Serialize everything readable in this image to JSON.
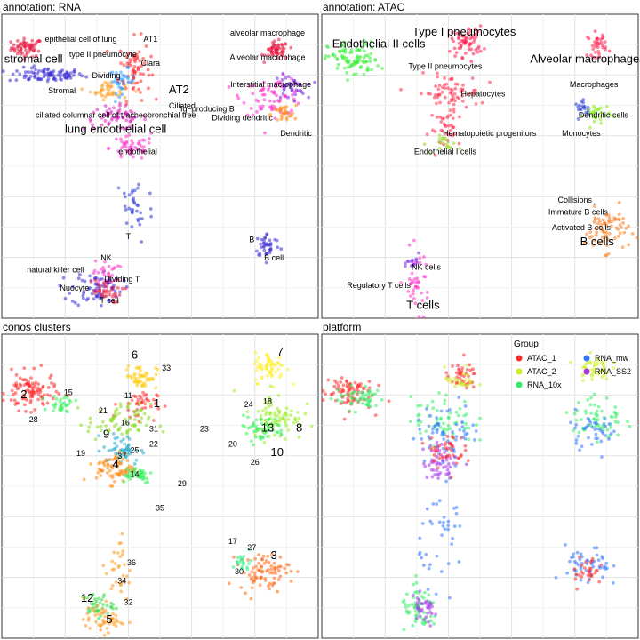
{
  "chart_data": [
    {
      "type": "scatter",
      "title": "annotation: RNA",
      "xlim": [
        0,
        10
      ],
      "ylim": [
        0,
        10
      ],
      "grid": true,
      "clusters": [
        {
          "cx": 0.8,
          "cy": 8.9,
          "sx": 0.25,
          "sy": 0.15,
          "n": 60,
          "color": "#e8143c"
        },
        {
          "cx": 1.4,
          "cy": 8.0,
          "sx": 0.6,
          "sy": 0.12,
          "n": 90,
          "color": "#3a2bd6"
        },
        {
          "cx": 4.2,
          "cy": 8.2,
          "sx": 0.25,
          "sy": 0.5,
          "n": 70,
          "color": "#ff2a2a"
        },
        {
          "cx": 3.4,
          "cy": 7.5,
          "sx": 0.3,
          "sy": 0.15,
          "n": 40,
          "color": "#ff9a1a"
        },
        {
          "cx": 3.8,
          "cy": 7.8,
          "sx": 0.2,
          "sy": 0.2,
          "n": 35,
          "color": "#3399ff"
        },
        {
          "cx": 3.6,
          "cy": 6.6,
          "sx": 0.5,
          "sy": 0.2,
          "n": 60,
          "color": "#e020c0"
        },
        {
          "cx": 4.1,
          "cy": 5.6,
          "sx": 0.35,
          "sy": 0.2,
          "n": 50,
          "color": "#ff33cc"
        },
        {
          "cx": 8.7,
          "cy": 8.8,
          "sx": 0.18,
          "sy": 0.15,
          "n": 55,
          "color": "#e8143c"
        },
        {
          "cx": 8.6,
          "cy": 7.3,
          "sx": 0.5,
          "sy": 0.3,
          "n": 70,
          "color": "#ff2ad0"
        },
        {
          "cx": 9.1,
          "cy": 7.6,
          "sx": 0.25,
          "sy": 0.2,
          "n": 40,
          "color": "#7a2be0"
        },
        {
          "cx": 8.9,
          "cy": 6.7,
          "sx": 0.2,
          "sy": 0.15,
          "n": 30,
          "color": "#ff8a1a"
        },
        {
          "cx": 4.2,
          "cy": 3.6,
          "sx": 0.3,
          "sy": 0.6,
          "n": 35,
          "color": "#2a3ad6"
        },
        {
          "cx": 8.4,
          "cy": 2.4,
          "sx": 0.2,
          "sy": 0.2,
          "n": 40,
          "color": "#3a2bd6"
        },
        {
          "cx": 3.0,
          "cy": 1.0,
          "sx": 0.4,
          "sy": 0.3,
          "n": 70,
          "color": "#3a2bd6"
        },
        {
          "cx": 3.2,
          "cy": 0.9,
          "sx": 0.3,
          "sy": 0.2,
          "n": 40,
          "color": "#e8143c"
        },
        {
          "cx": 3.3,
          "cy": 1.5,
          "sx": 0.2,
          "sy": 0.2,
          "n": 25,
          "color": "#ff33cc"
        }
      ],
      "labels": [
        {
          "text": "epithelial cell of lung",
          "x": 2.5,
          "y": 9.1,
          "size": "small"
        },
        {
          "text": "AT1",
          "x": 4.7,
          "y": 9.1,
          "size": "small"
        },
        {
          "text": "type II pneumocyte",
          "x": 3.2,
          "y": 8.6,
          "size": "small"
        },
        {
          "text": "stromal cell",
          "x": 1.0,
          "y": 8.4,
          "size": "big"
        },
        {
          "text": "Clara",
          "x": 4.7,
          "y": 8.3,
          "size": "small"
        },
        {
          "text": "Dividing",
          "x": 3.3,
          "y": 7.9,
          "size": "small"
        },
        {
          "text": "Stromal",
          "x": 1.9,
          "y": 7.4,
          "size": "small"
        },
        {
          "text": "AT2",
          "x": 5.6,
          "y": 7.4,
          "size": "big"
        },
        {
          "text": "Ciliated",
          "x": 5.7,
          "y": 6.9,
          "size": "small"
        },
        {
          "text": "Ig−producing B",
          "x": 6.5,
          "y": 6.8,
          "size": "small"
        },
        {
          "text": "ciliated columnar cell of tracheobronchial tree",
          "x": 3.6,
          "y": 6.6,
          "size": "small"
        },
        {
          "text": "lung endothelial cell",
          "x": 3.6,
          "y": 6.1,
          "size": "big"
        },
        {
          "text": "endothelial",
          "x": 4.3,
          "y": 5.4,
          "size": "small"
        },
        {
          "text": "alveolar macrophage",
          "x": 8.4,
          "y": 9.3,
          "size": "small"
        },
        {
          "text": "Alveolar macrophage",
          "x": 8.4,
          "y": 8.5,
          "size": "small"
        },
        {
          "text": "Interstitial macrophage",
          "x": 8.5,
          "y": 7.6,
          "size": "small"
        },
        {
          "text": "Dividing dendritic",
          "x": 7.6,
          "y": 6.5,
          "size": "small"
        },
        {
          "text": "Dendritic",
          "x": 9.3,
          "y": 6.0,
          "size": "small"
        },
        {
          "text": "T",
          "x": 4.0,
          "y": 2.6,
          "size": "small"
        },
        {
          "text": "B",
          "x": 7.9,
          "y": 2.5,
          "size": "small"
        },
        {
          "text": "B cell",
          "x": 8.6,
          "y": 1.9,
          "size": "small"
        },
        {
          "text": "NK",
          "x": 3.3,
          "y": 1.9,
          "size": "small"
        },
        {
          "text": "natural killer cell",
          "x": 1.7,
          "y": 1.5,
          "size": "small"
        },
        {
          "text": "Dividing T",
          "x": 3.8,
          "y": 1.2,
          "size": "small"
        },
        {
          "text": "Nuocyte",
          "x": 2.3,
          "y": 0.9,
          "size": "small"
        },
        {
          "text": "T cell",
          "x": 3.4,
          "y": 0.5,
          "size": "small"
        }
      ]
    },
    {
      "type": "scatter",
      "title": "annotation: ATAC",
      "xlim": [
        0,
        10
      ],
      "ylim": [
        0,
        10
      ],
      "grid": true,
      "clusters": [
        {
          "cx": 1.0,
          "cy": 8.5,
          "sx": 0.4,
          "sy": 0.3,
          "n": 90,
          "color": "#33ee33"
        },
        {
          "cx": 4.6,
          "cy": 9.1,
          "sx": 0.25,
          "sy": 0.25,
          "n": 60,
          "color": "#ff1a4a"
        },
        {
          "cx": 4.0,
          "cy": 7.4,
          "sx": 0.5,
          "sy": 0.3,
          "n": 70,
          "color": "#ff2a4a"
        },
        {
          "cx": 4.0,
          "cy": 6.2,
          "sx": 0.3,
          "sy": 0.3,
          "n": 30,
          "color": "#ff2a4a"
        },
        {
          "cx": 4.0,
          "cy": 5.7,
          "sx": 0.2,
          "sy": 0.15,
          "n": 20,
          "color": "#9ad62a"
        },
        {
          "cx": 8.7,
          "cy": 9.0,
          "sx": 0.15,
          "sy": 0.2,
          "n": 35,
          "color": "#ff1a4a"
        },
        {
          "cx": 8.3,
          "cy": 6.9,
          "sx": 0.15,
          "sy": 0.12,
          "n": 20,
          "color": "#2a3ad6"
        },
        {
          "cx": 8.7,
          "cy": 6.7,
          "sx": 0.2,
          "sy": 0.2,
          "n": 30,
          "color": "#88ee22"
        },
        {
          "cx": 9.0,
          "cy": 2.9,
          "sx": 0.35,
          "sy": 0.35,
          "n": 70,
          "color": "#ff7a1a"
        },
        {
          "cx": 3.0,
          "cy": 1.2,
          "sx": 0.2,
          "sy": 0.5,
          "n": 40,
          "color": "#ff33cc"
        },
        {
          "cx": 2.9,
          "cy": 1.8,
          "sx": 0.1,
          "sy": 0.15,
          "n": 15,
          "color": "#7a2be0"
        }
      ],
      "labels": [
        {
          "text": "Endothelial II cells",
          "x": 1.8,
          "y": 8.9,
          "size": "big"
        },
        {
          "text": "Type I pneumocytes",
          "x": 4.5,
          "y": 9.3,
          "size": "big"
        },
        {
          "text": "Alveolar macrophages",
          "x": 8.4,
          "y": 8.4,
          "size": "big"
        },
        {
          "text": "Type II pneumocytes",
          "x": 3.9,
          "y": 8.2,
          "size": "small"
        },
        {
          "text": "Hepatocytes",
          "x": 5.1,
          "y": 7.3,
          "size": "small"
        },
        {
          "text": "Macrophages",
          "x": 8.6,
          "y": 7.6,
          "size": "small"
        },
        {
          "text": "Dendritic cells",
          "x": 8.9,
          "y": 6.6,
          "size": "small"
        },
        {
          "text": "Hematopoietic progenitors",
          "x": 5.3,
          "y": 6.0,
          "size": "small"
        },
        {
          "text": "Monocytes",
          "x": 8.2,
          "y": 6.0,
          "size": "small"
        },
        {
          "text": "Endothelial I cells",
          "x": 3.9,
          "y": 5.4,
          "size": "small"
        },
        {
          "text": "Collisions",
          "x": 8.0,
          "y": 3.8,
          "size": "small"
        },
        {
          "text": "Immature B cells",
          "x": 8.1,
          "y": 3.4,
          "size": "small"
        },
        {
          "text": "Activated B cells",
          "x": 8.2,
          "y": 2.9,
          "size": "small"
        },
        {
          "text": "B cells",
          "x": 8.7,
          "y": 2.4,
          "size": "big"
        },
        {
          "text": "NK cells",
          "x": 3.3,
          "y": 1.6,
          "size": "small"
        },
        {
          "text": "Regulatory T cells",
          "x": 1.8,
          "y": 1.0,
          "size": "small"
        },
        {
          "text": "T cells",
          "x": 3.2,
          "y": 0.3,
          "size": "big"
        }
      ]
    },
    {
      "type": "scatter",
      "title": "conos clusters",
      "xlim": [
        0,
        10
      ],
      "ylim": [
        0,
        10
      ],
      "grid": true,
      "clusters": [
        {
          "cx": 0.9,
          "cy": 8.1,
          "sx": 0.4,
          "sy": 0.3,
          "n": 100,
          "color": "#ff2a2a"
        },
        {
          "cx": 1.9,
          "cy": 7.7,
          "sx": 0.2,
          "sy": 0.15,
          "n": 30,
          "color": "#33ee55"
        },
        {
          "cx": 4.4,
          "cy": 8.6,
          "sx": 0.25,
          "sy": 0.2,
          "n": 50,
          "color": "#ffcc11"
        },
        {
          "cx": 4.3,
          "cy": 7.7,
          "sx": 0.3,
          "sy": 0.25,
          "n": 40,
          "color": "#ff2a2a"
        },
        {
          "cx": 3.7,
          "cy": 7.1,
          "sx": 0.5,
          "sy": 0.3,
          "n": 70,
          "color": "#88dd22"
        },
        {
          "cx": 3.8,
          "cy": 6.2,
          "sx": 0.3,
          "sy": 0.25,
          "n": 50,
          "color": "#22aacc"
        },
        {
          "cx": 3.6,
          "cy": 5.6,
          "sx": 0.3,
          "sy": 0.25,
          "n": 70,
          "color": "#ff8811"
        },
        {
          "cx": 4.2,
          "cy": 5.4,
          "sx": 0.3,
          "sy": 0.15,
          "n": 40,
          "color": "#33ee55"
        },
        {
          "cx": 8.5,
          "cy": 8.9,
          "sx": 0.25,
          "sy": 0.25,
          "n": 60,
          "color": "#ffee22"
        },
        {
          "cx": 8.7,
          "cy": 7.3,
          "sx": 0.4,
          "sy": 0.4,
          "n": 80,
          "color": "#99ee22"
        },
        {
          "cx": 8.2,
          "cy": 6.9,
          "sx": 0.4,
          "sy": 0.2,
          "n": 50,
          "color": "#33ee55"
        },
        {
          "cx": 8.3,
          "cy": 2.2,
          "sx": 0.4,
          "sy": 0.3,
          "n": 80,
          "color": "#ff6611"
        },
        {
          "cx": 7.6,
          "cy": 2.5,
          "sx": 0.15,
          "sy": 0.15,
          "n": 20,
          "color": "#33ee88"
        },
        {
          "cx": 3.7,
          "cy": 2.2,
          "sx": 0.2,
          "sy": 0.6,
          "n": 30,
          "color": "#ff9922"
        },
        {
          "cx": 3.0,
          "cy": 1.1,
          "sx": 0.25,
          "sy": 0.2,
          "n": 40,
          "color": "#33dd44"
        },
        {
          "cx": 3.2,
          "cy": 0.6,
          "sx": 0.3,
          "sy": 0.2,
          "n": 50,
          "color": "#ff9922"
        }
      ],
      "labels": [
        {
          "text": "6",
          "x": 4.2,
          "y": 9.2,
          "size": "big"
        },
        {
          "text": "33",
          "x": 5.2,
          "y": 8.8,
          "size": "small"
        },
        {
          "text": "7",
          "x": 8.8,
          "y": 9.3,
          "size": "big"
        },
        {
          "text": "2",
          "x": 0.7,
          "y": 7.9,
          "size": "big"
        },
        {
          "text": "15",
          "x": 2.1,
          "y": 8.0,
          "size": "small"
        },
        {
          "text": "11",
          "x": 4.0,
          "y": 7.9,
          "size": "small"
        },
        {
          "text": "1",
          "x": 4.9,
          "y": 7.6,
          "size": "big"
        },
        {
          "text": "24",
          "x": 7.8,
          "y": 7.6,
          "size": "small"
        },
        {
          "text": "18",
          "x": 8.4,
          "y": 7.7,
          "size": "small"
        },
        {
          "text": "28",
          "x": 1.0,
          "y": 7.1,
          "size": "small"
        },
        {
          "text": "21",
          "x": 3.2,
          "y": 7.4,
          "size": "small"
        },
        {
          "text": "16",
          "x": 3.9,
          "y": 7.0,
          "size": "small"
        },
        {
          "text": "31",
          "x": 4.8,
          "y": 6.8,
          "size": "small"
        },
        {
          "text": "23",
          "x": 6.4,
          "y": 6.8,
          "size": "small"
        },
        {
          "text": "13",
          "x": 8.4,
          "y": 6.8,
          "size": "big"
        },
        {
          "text": "8",
          "x": 9.4,
          "y": 6.8,
          "size": "big"
        },
        {
          "text": "9",
          "x": 3.3,
          "y": 6.6,
          "size": "big"
        },
        {
          "text": "22",
          "x": 4.8,
          "y": 6.3,
          "size": "small"
        },
        {
          "text": "20",
          "x": 7.3,
          "y": 6.3,
          "size": "small"
        },
        {
          "text": "25",
          "x": 4.2,
          "y": 6.1,
          "size": "small"
        },
        {
          "text": "19",
          "x": 2.5,
          "y": 6.0,
          "size": "small"
        },
        {
          "text": "37",
          "x": 3.8,
          "y": 5.9,
          "size": "small"
        },
        {
          "text": "10",
          "x": 8.7,
          "y": 6.0,
          "size": "big"
        },
        {
          "text": "26",
          "x": 8.0,
          "y": 5.7,
          "size": "small"
        },
        {
          "text": "4",
          "x": 3.6,
          "y": 5.6,
          "size": "big"
        },
        {
          "text": "14",
          "x": 4.2,
          "y": 5.3,
          "size": "small"
        },
        {
          "text": "29",
          "x": 5.7,
          "y": 5.0,
          "size": "small"
        },
        {
          "text": "35",
          "x": 5.0,
          "y": 4.2,
          "size": "small"
        },
        {
          "text": "17",
          "x": 7.3,
          "y": 3.1,
          "size": "small"
        },
        {
          "text": "27",
          "x": 7.9,
          "y": 2.9,
          "size": "small"
        },
        {
          "text": "3",
          "x": 8.6,
          "y": 2.6,
          "size": "big"
        },
        {
          "text": "36",
          "x": 4.1,
          "y": 2.4,
          "size": "small"
        },
        {
          "text": "30",
          "x": 7.5,
          "y": 2.1,
          "size": "small"
        },
        {
          "text": "34",
          "x": 3.8,
          "y": 1.8,
          "size": "small"
        },
        {
          "text": "12",
          "x": 2.7,
          "y": 1.2,
          "size": "big"
        },
        {
          "text": "32",
          "x": 4.0,
          "y": 1.1,
          "size": "small"
        },
        {
          "text": "5",
          "x": 3.4,
          "y": 0.5,
          "size": "big"
        }
      ]
    },
    {
      "type": "scatter",
      "title": "platform",
      "xlim": [
        0,
        10
      ],
      "ylim": [
        0,
        10
      ],
      "grid": true,
      "legend": {
        "title": "Group",
        "placement": "top-right",
        "entries": [
          {
            "name": "ATAC_1",
            "color": "#ff2a2a"
          },
          {
            "name": "RNA_mw",
            "color": "#3377ff"
          },
          {
            "name": "ATAC_2",
            "color": "#ccee22"
          },
          {
            "name": "RNA_SS2",
            "color": "#aa33ee"
          },
          {
            "name": "RNA_10x",
            "color": "#33ee66"
          }
        ]
      },
      "clusters": [
        {
          "cx": 0.8,
          "cy": 8.1,
          "sx": 0.4,
          "sy": 0.3,
          "n": 80,
          "color": "#ff2a2a"
        },
        {
          "cx": 1.2,
          "cy": 7.9,
          "sx": 0.4,
          "sy": 0.2,
          "n": 50,
          "color": "#33ee66"
        },
        {
          "cx": 4.4,
          "cy": 8.6,
          "sx": 0.25,
          "sy": 0.2,
          "n": 40,
          "color": "#ff2a2a"
        },
        {
          "cx": 4.4,
          "cy": 8.5,
          "sx": 0.25,
          "sy": 0.2,
          "n": 25,
          "color": "#ccee22"
        },
        {
          "cx": 3.8,
          "cy": 7.2,
          "sx": 0.5,
          "sy": 0.4,
          "n": 60,
          "color": "#33ee66"
        },
        {
          "cx": 4.0,
          "cy": 6.8,
          "sx": 0.5,
          "sy": 0.5,
          "n": 60,
          "color": "#3377ff"
        },
        {
          "cx": 3.8,
          "cy": 5.8,
          "sx": 0.3,
          "sy": 0.3,
          "n": 50,
          "color": "#aa33ee"
        },
        {
          "cx": 3.9,
          "cy": 6.2,
          "sx": 0.3,
          "sy": 0.3,
          "n": 40,
          "color": "#ff2a2a"
        },
        {
          "cx": 8.6,
          "cy": 8.9,
          "sx": 0.25,
          "sy": 0.2,
          "n": 45,
          "color": "#ccee22"
        },
        {
          "cx": 8.7,
          "cy": 7.2,
          "sx": 0.4,
          "sy": 0.4,
          "n": 60,
          "color": "#33ee66"
        },
        {
          "cx": 8.6,
          "cy": 6.9,
          "sx": 0.4,
          "sy": 0.3,
          "n": 40,
          "color": "#3377ff"
        },
        {
          "cx": 8.4,
          "cy": 2.3,
          "sx": 0.35,
          "sy": 0.35,
          "n": 50,
          "color": "#3377ff"
        },
        {
          "cx": 8.4,
          "cy": 2.2,
          "sx": 0.25,
          "sy": 0.25,
          "n": 30,
          "color": "#ff2a2a"
        },
        {
          "cx": 3.9,
          "cy": 3.5,
          "sx": 0.4,
          "sy": 0.8,
          "n": 40,
          "color": "#3377ff"
        },
        {
          "cx": 3.1,
          "cy": 0.9,
          "sx": 0.3,
          "sy": 0.35,
          "n": 60,
          "color": "#33ee66"
        },
        {
          "cx": 3.2,
          "cy": 0.9,
          "sx": 0.25,
          "sy": 0.25,
          "n": 35,
          "color": "#aa33ee"
        }
      ],
      "labels": []
    }
  ]
}
